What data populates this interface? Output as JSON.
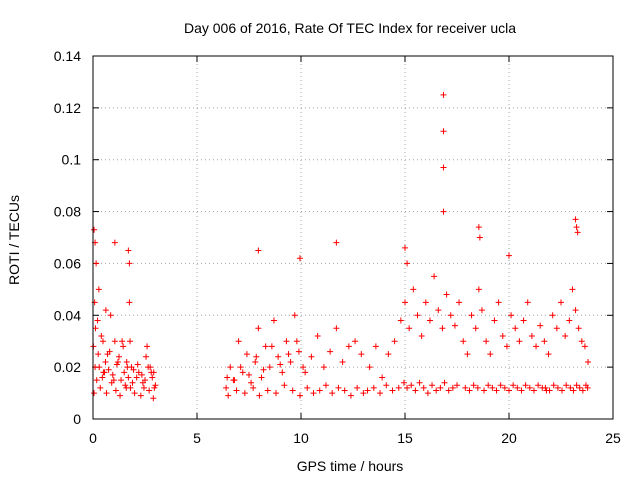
{
  "chart_data": {
    "type": "scatter",
    "title": "Day 006 of 2016, Rate Of TEC Index for receiver ucla",
    "xlabel": "GPS time / hours",
    "ylabel": "ROTI / TECUs",
    "xlim": [
      0,
      25
    ],
    "ylim": [
      0,
      0.14
    ],
    "xticks": [
      0,
      5,
      10,
      15,
      20,
      25
    ],
    "xtick_labels": [
      "0",
      "5",
      "10",
      "15",
      "20",
      "25"
    ],
    "yticks": [
      0,
      0.02,
      0.04,
      0.06,
      0.08,
      0.1,
      0.12,
      0.14
    ],
    "ytick_labels": [
      "0",
      "0.02",
      "0.04",
      "0.06",
      "0.08",
      "0.1",
      "0.12",
      "0.14"
    ],
    "grid": true,
    "marker": "+",
    "color": "#ff0000",
    "series": [
      {
        "name": "ROTI",
        "x": [
          0.02,
          0.08,
          0.15,
          0.22,
          0.3,
          0.4,
          0.55,
          0.7,
          0.85,
          1.0,
          1.2,
          1.4,
          1.6,
          1.75,
          1.85,
          2.1,
          2.4,
          2.6,
          2.8,
          2.95,
          0.05,
          0.18,
          0.35,
          0.5,
          0.65,
          0.9,
          1.1,
          1.3,
          1.55,
          1.7,
          1.8,
          2.0,
          2.3,
          2.5,
          2.7,
          2.9,
          0.1,
          0.25,
          0.45,
          0.6,
          0.75,
          0.95,
          1.15,
          1.35,
          1.5,
          1.65,
          1.9,
          2.2,
          2.45,
          2.65,
          2.85,
          3.0,
          0.12,
          0.28,
          0.48,
          0.62,
          0.8,
          1.05,
          1.25,
          1.45,
          1.62,
          1.78,
          1.95,
          2.15,
          2.35,
          2.55,
          2.75,
          2.92,
          6.4,
          6.6,
          6.8,
          7.0,
          7.2,
          7.4,
          7.6,
          7.8,
          7.95,
          8.1,
          8.3,
          8.5,
          8.7,
          8.9,
          9.1,
          9.3,
          9.5,
          9.7,
          9.9,
          10.1,
          6.5,
          6.9,
          7.3,
          7.7,
          8.0,
          8.4,
          8.8,
          9.2,
          9.6,
          9.95,
          10.3,
          10.6,
          10.9,
          11.2,
          11.5,
          11.8,
          12.1,
          12.4,
          12.7,
          13.0,
          6.45,
          6.75,
          7.1,
          7.5,
          7.85,
          8.2,
          8.6,
          9.0,
          9.4,
          9.8,
          10.2,
          10.5,
          10.8,
          11.1,
          11.4,
          11.7,
          12.0,
          12.3,
          12.6,
          12.9,
          13.3,
          13.6,
          13.9,
          14.2,
          14.5,
          14.8,
          15.0,
          15.2,
          15.4,
          15.6,
          15.8,
          16.0,
          16.2,
          16.4,
          16.6,
          16.8,
          17.0,
          17.2,
          17.4,
          17.6,
          13.2,
          13.5,
          13.8,
          14.1,
          14.4,
          14.7,
          14.95,
          15.1,
          15.3,
          15.5,
          15.7,
          15.9,
          16.1,
          16.3,
          16.5,
          16.7,
          16.9,
          17.1,
          17.3,
          17.5,
          17.8,
          18.0,
          18.2,
          18.4,
          18.55,
          18.7,
          18.9,
          19.1,
          19.3,
          19.5,
          19.7,
          19.9,
          20.1,
          20.3,
          20.5,
          20.7,
          20.9,
          21.1,
          21.3,
          21.5,
          17.9,
          18.1,
          18.3,
          18.5,
          18.8,
          19.0,
          19.2,
          19.4,
          19.6,
          19.8,
          20.0,
          20.2,
          20.4,
          20.6,
          20.8,
          21.0,
          21.2,
          21.4,
          21.6,
          21.8,
          21.7,
          21.9,
          22.1,
          22.3,
          22.5,
          22.7,
          22.9,
          23.05,
          23.2,
          23.35,
          23.5,
          23.65,
          23.8,
          21.75,
          21.95,
          22.15,
          22.35,
          22.55,
          22.75,
          22.95,
          23.1,
          23.25,
          23.4,
          23.55,
          23.7,
          23.78,
          16.85,
          16.85,
          16.85,
          16.85,
          0.05,
          0.1,
          1.05,
          1.7,
          1.75,
          7.95,
          9.95,
          11.7,
          15.0,
          15.1,
          18.55,
          18.6,
          20.0,
          23.2,
          23.25,
          23.3
        ],
        "y": [
          0.028,
          0.045,
          0.06,
          0.038,
          0.02,
          0.032,
          0.018,
          0.025,
          0.04,
          0.015,
          0.022,
          0.03,
          0.012,
          0.045,
          0.02,
          0.016,
          0.014,
          0.028,
          0.018,
          0.012,
          0.01,
          0.015,
          0.012,
          0.018,
          0.01,
          0.014,
          0.011,
          0.009,
          0.013,
          0.016,
          0.012,
          0.01,
          0.009,
          0.015,
          0.011,
          0.008,
          0.02,
          0.025,
          0.016,
          0.022,
          0.019,
          0.017,
          0.021,
          0.015,
          0.018,
          0.02,
          0.014,
          0.018,
          0.012,
          0.02,
          0.016,
          0.013,
          0.035,
          0.05,
          0.03,
          0.042,
          0.026,
          0.03,
          0.024,
          0.028,
          0.022,
          0.03,
          0.019,
          0.021,
          0.017,
          0.024,
          0.02,
          0.018,
          0.012,
          0.02,
          0.015,
          0.03,
          0.018,
          0.025,
          0.014,
          0.022,
          0.035,
          0.016,
          0.028,
          0.02,
          0.038,
          0.024,
          0.018,
          0.03,
          0.022,
          0.04,
          0.026,
          0.02,
          0.009,
          0.011,
          0.01,
          0.012,
          0.009,
          0.011,
          0.01,
          0.013,
          0.011,
          0.009,
          0.012,
          0.01,
          0.011,
          0.013,
          0.01,
          0.012,
          0.011,
          0.009,
          0.012,
          0.01,
          0.016,
          0.015,
          0.02,
          0.017,
          0.024,
          0.019,
          0.028,
          0.021,
          0.025,
          0.03,
          0.018,
          0.024,
          0.032,
          0.02,
          0.026,
          0.035,
          0.022,
          0.028,
          0.03,
          0.025,
          0.02,
          0.028,
          0.016,
          0.025,
          0.03,
          0.038,
          0.045,
          0.035,
          0.05,
          0.04,
          0.032,
          0.045,
          0.038,
          0.055,
          0.042,
          0.035,
          0.048,
          0.04,
          0.036,
          0.045,
          0.011,
          0.012,
          0.01,
          0.013,
          0.011,
          0.012,
          0.014,
          0.012,
          0.013,
          0.011,
          0.014,
          0.012,
          0.01,
          0.013,
          0.011,
          0.012,
          0.014,
          0.011,
          0.012,
          0.013,
          0.03,
          0.025,
          0.04,
          0.035,
          0.05,
          0.042,
          0.03,
          0.025,
          0.038,
          0.045,
          0.032,
          0.028,
          0.04,
          0.035,
          0.03,
          0.038,
          0.045,
          0.032,
          0.028,
          0.036,
          0.012,
          0.011,
          0.013,
          0.012,
          0.011,
          0.013,
          0.012,
          0.011,
          0.013,
          0.012,
          0.011,
          0.013,
          0.012,
          0.011,
          0.013,
          0.012,
          0.011,
          0.013,
          0.012,
          0.011,
          0.03,
          0.025,
          0.04,
          0.035,
          0.045,
          0.032,
          0.038,
          0.05,
          0.042,
          0.035,
          0.03,
          0.028,
          0.022,
          0.012,
          0.011,
          0.013,
          0.012,
          0.011,
          0.013,
          0.012,
          0.011,
          0.013,
          0.012,
          0.011,
          0.013,
          0.012,
          0.125,
          0.111,
          0.097,
          0.08,
          0.073,
          0.068,
          0.068,
          0.065,
          0.06,
          0.065,
          0.062,
          0.068,
          0.066,
          0.06,
          0.074,
          0.07,
          0.063,
          0.077,
          0.074,
          0.072
        ]
      }
    ]
  }
}
